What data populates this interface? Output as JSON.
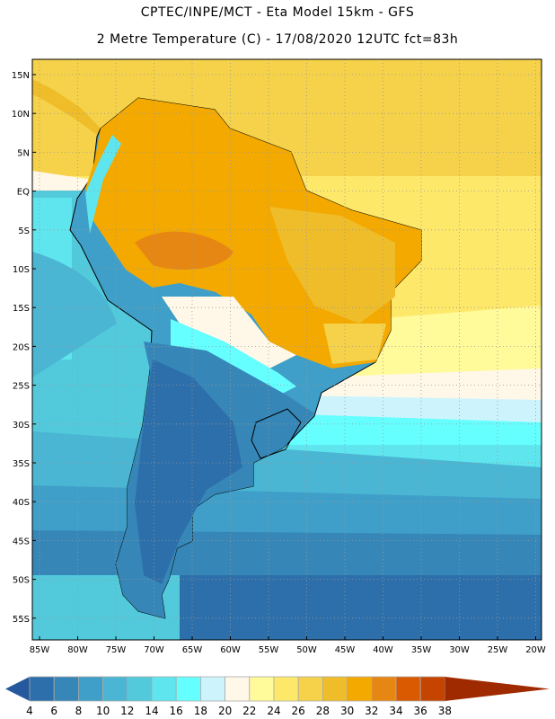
{
  "header": {
    "title_line1": "CPTEC/INPE/MCT -  Eta Model 15km - GFS",
    "title_line2": "2 Metre Temperature (C) - 17/08/2020 12UTC fct=83h"
  },
  "map": {
    "lat_labels": [
      "15N",
      "10N",
      "5N",
      "EQ",
      "5S",
      "10S",
      "15S",
      "20S",
      "25S",
      "30S",
      "35S",
      "40S",
      "45S",
      "50S",
      "55S"
    ],
    "lon_labels": [
      "85W",
      "80W",
      "75W",
      "70W",
      "65W",
      "60W",
      "55W",
      "50W",
      "45W",
      "40W",
      "35W",
      "30W",
      "25W",
      "20W"
    ]
  },
  "colorbar": {
    "labels": [
      "4",
      "6",
      "8",
      "10",
      "12",
      "14",
      "16",
      "18",
      "20",
      "22",
      "24",
      "26",
      "28",
      "30",
      "32",
      "34",
      "36",
      "38"
    ],
    "low_color": "#25589c",
    "high_color": "#a02a00",
    "colors": [
      "#2c6faa",
      "#3687b7",
      "#3f9fc8",
      "#4ab6d3",
      "#52cadc",
      "#5fe5ee",
      "#66ffff",
      "#cdf4fc",
      "#fff8e8",
      "#fffa9a",
      "#fee86a",
      "#f5d24a",
      "#efbd2a",
      "#f3a900",
      "#e68714",
      "#d95a00",
      "#c44400"
    ]
  }
}
